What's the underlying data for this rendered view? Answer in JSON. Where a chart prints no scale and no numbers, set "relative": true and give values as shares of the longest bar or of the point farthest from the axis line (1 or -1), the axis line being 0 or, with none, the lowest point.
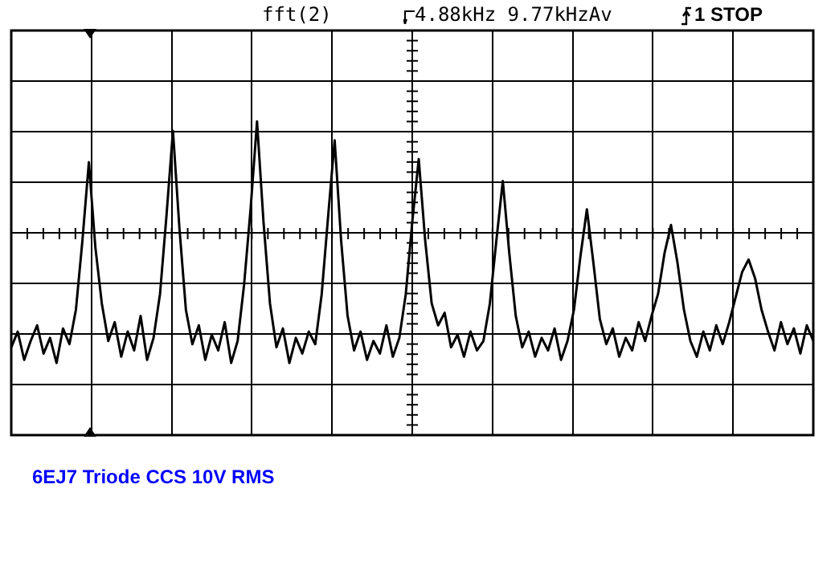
{
  "chart_data": {
    "type": "line",
    "title": "6EJ7 Triode CCS 10V RMS",
    "annotations": [
      "fft(2)",
      "4.88kHz 9.77kHzAv",
      "1 STOP"
    ],
    "categories": [
      null,
      null,
      null,
      null,
      null,
      null,
      null,
      null,
      null,
      null,
      null,
      null,
      null,
      null,
      null,
      null,
      null,
      null,
      null,
      null,
      null,
      null,
      null,
      null,
      null,
      null,
      null,
      null,
      null,
      null,
      null,
      null,
      null,
      null,
      null,
      null,
      null,
      null,
      null,
      null,
      null,
      null,
      null,
      null,
      null,
      null,
      null,
      null,
      null,
      null,
      null,
      null,
      null,
      null,
      null,
      null,
      null,
      null,
      null,
      null,
      null,
      null,
      null,
      null,
      null,
      null,
      null,
      null,
      null,
      null,
      null,
      null,
      null,
      null,
      null,
      null,
      null,
      null,
      null,
      null,
      null,
      null,
      null,
      null,
      null,
      null,
      null,
      null,
      null,
      null,
      null,
      null,
      null,
      null,
      null,
      null,
      null,
      null,
      null,
      null,
      null,
      null,
      null,
      null,
      null,
      null,
      null,
      null,
      null,
      null,
      null,
      null,
      null,
      null,
      null,
      null,
      null,
      null,
      null,
      null,
      null,
      null,
      null,
      null,
      null
    ],
    "values": [
      0.28,
      0.33,
      0.24,
      0.3,
      0.35,
      0.26,
      0.31,
      0.23,
      0.34,
      0.29,
      0.4,
      0.62,
      0.87,
      0.6,
      0.42,
      0.3,
      0.36,
      0.25,
      0.33,
      0.27,
      0.38,
      0.24,
      0.31,
      0.45,
      0.7,
      0.97,
      0.66,
      0.4,
      0.29,
      0.35,
      0.24,
      0.32,
      0.27,
      0.36,
      0.23,
      0.3,
      0.48,
      0.72,
      1.0,
      0.68,
      0.42,
      0.28,
      0.34,
      0.23,
      0.31,
      0.26,
      0.33,
      0.29,
      0.45,
      0.7,
      0.94,
      0.62,
      0.38,
      0.27,
      0.33,
      0.24,
      0.3,
      0.26,
      0.35,
      0.25,
      0.31,
      0.45,
      0.68,
      0.88,
      0.62,
      0.42,
      0.35,
      0.39,
      0.28,
      0.32,
      0.25,
      0.33,
      0.27,
      0.3,
      0.42,
      0.62,
      0.81,
      0.58,
      0.38,
      0.28,
      0.33,
      0.25,
      0.31,
      0.27,
      0.34,
      0.24,
      0.3,
      0.4,
      0.57,
      0.72,
      0.55,
      0.37,
      0.29,
      0.34,
      0.25,
      0.31,
      0.27,
      0.36,
      0.3,
      0.38,
      0.45,
      0.58,
      0.67,
      0.55,
      0.4,
      0.3,
      0.25,
      0.33,
      0.27,
      0.35,
      0.29,
      0.36,
      0.44,
      0.52,
      0.56,
      0.5,
      0.4,
      0.33,
      0.27,
      0.36,
      0.29,
      0.34,
      0.26,
      0.35,
      0.3
    ],
    "color": "#000000",
    "relative": true,
    "grid": true
  }
}
